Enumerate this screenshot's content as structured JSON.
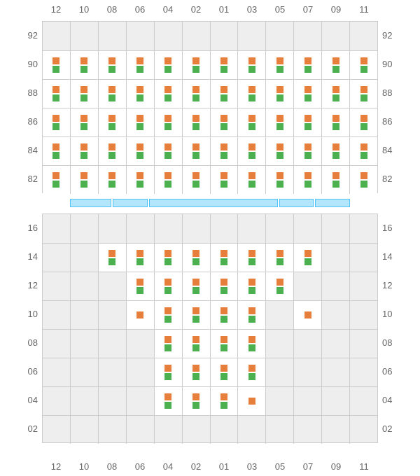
{
  "layout": {
    "columns": [
      "12",
      "10",
      "08",
      "06",
      "04",
      "02",
      "01",
      "03",
      "05",
      "07",
      "09",
      "11"
    ],
    "upper_rows": [
      "92",
      "90",
      "88",
      "86",
      "84",
      "82"
    ],
    "lower_rows": [
      "16",
      "14",
      "12",
      "10",
      "08",
      "06",
      "04",
      "02"
    ],
    "upper_row_height": 41,
    "lower_row_height": 41,
    "label_fontsize": 13,
    "label_color": "#666666",
    "grid_border_color": "#cccccc",
    "empty_bg": "#eeeeee",
    "active_bg": "#ffffff"
  },
  "markers": {
    "orange": "#e67e3c",
    "green": "#4caf50",
    "size": 10
  },
  "separator": {
    "segments": [
      1.2,
      1,
      3.8,
      1,
      1
    ],
    "fill": "#b3e5fc",
    "border": "#4fc3f7"
  },
  "upper_cells": [
    [
      {
        "active": false
      },
      {
        "active": false
      },
      {
        "active": false
      },
      {
        "active": false
      },
      {
        "active": false
      },
      {
        "active": false
      },
      {
        "active": false
      },
      {
        "active": false
      },
      {
        "active": false
      },
      {
        "active": false
      },
      {
        "active": false
      },
      {
        "active": false
      }
    ],
    [
      {
        "active": true,
        "o": 1,
        "g": 1
      },
      {
        "active": true,
        "o": 1,
        "g": 1
      },
      {
        "active": true,
        "o": 1,
        "g": 1
      },
      {
        "active": true,
        "o": 1,
        "g": 1
      },
      {
        "active": true,
        "o": 1,
        "g": 1
      },
      {
        "active": true,
        "o": 1,
        "g": 1
      },
      {
        "active": true,
        "o": 1,
        "g": 1
      },
      {
        "active": true,
        "o": 1,
        "g": 1
      },
      {
        "active": true,
        "o": 1,
        "g": 1
      },
      {
        "active": true,
        "o": 1,
        "g": 1
      },
      {
        "active": true,
        "o": 1,
        "g": 1
      },
      {
        "active": true,
        "o": 1,
        "g": 1
      }
    ],
    [
      {
        "active": true,
        "o": 1,
        "g": 1
      },
      {
        "active": true,
        "o": 1,
        "g": 1
      },
      {
        "active": true,
        "o": 1,
        "g": 1
      },
      {
        "active": true,
        "o": 1,
        "g": 1
      },
      {
        "active": true,
        "o": 1,
        "g": 1
      },
      {
        "active": true,
        "o": 1,
        "g": 1
      },
      {
        "active": true,
        "o": 1,
        "g": 1
      },
      {
        "active": true,
        "o": 1,
        "g": 1
      },
      {
        "active": true,
        "o": 1,
        "g": 1
      },
      {
        "active": true,
        "o": 1,
        "g": 1
      },
      {
        "active": true,
        "o": 1,
        "g": 1
      },
      {
        "active": true,
        "o": 1,
        "g": 1
      }
    ],
    [
      {
        "active": true,
        "o": 1,
        "g": 1
      },
      {
        "active": true,
        "o": 1,
        "g": 1
      },
      {
        "active": true,
        "o": 1,
        "g": 1
      },
      {
        "active": true,
        "o": 1,
        "g": 1
      },
      {
        "active": true,
        "o": 1,
        "g": 1
      },
      {
        "active": true,
        "o": 1,
        "g": 1
      },
      {
        "active": true,
        "o": 1,
        "g": 1
      },
      {
        "active": true,
        "o": 1,
        "g": 1
      },
      {
        "active": true,
        "o": 1,
        "g": 1
      },
      {
        "active": true,
        "o": 1,
        "g": 1
      },
      {
        "active": true,
        "o": 1,
        "g": 1
      },
      {
        "active": true,
        "o": 1,
        "g": 1
      }
    ],
    [
      {
        "active": true,
        "o": 1,
        "g": 1
      },
      {
        "active": true,
        "o": 1,
        "g": 1
      },
      {
        "active": true,
        "o": 1,
        "g": 1
      },
      {
        "active": true,
        "o": 1,
        "g": 1
      },
      {
        "active": true,
        "o": 1,
        "g": 1
      },
      {
        "active": true,
        "o": 1,
        "g": 1
      },
      {
        "active": true,
        "o": 1,
        "g": 1
      },
      {
        "active": true,
        "o": 1,
        "g": 1
      },
      {
        "active": true,
        "o": 1,
        "g": 1
      },
      {
        "active": true,
        "o": 1,
        "g": 1
      },
      {
        "active": true,
        "o": 1,
        "g": 1
      },
      {
        "active": true,
        "o": 1,
        "g": 1
      }
    ],
    [
      {
        "active": true,
        "o": 1,
        "g": 1
      },
      {
        "active": true,
        "o": 1,
        "g": 1
      },
      {
        "active": true,
        "o": 1,
        "g": 1
      },
      {
        "active": true,
        "o": 1,
        "g": 1
      },
      {
        "active": true,
        "o": 1,
        "g": 1
      },
      {
        "active": true,
        "o": 1,
        "g": 1
      },
      {
        "active": true,
        "o": 1,
        "g": 1
      },
      {
        "active": true,
        "o": 1,
        "g": 1
      },
      {
        "active": true,
        "o": 1,
        "g": 1
      },
      {
        "active": true,
        "o": 1,
        "g": 1
      },
      {
        "active": true,
        "o": 1,
        "g": 1
      },
      {
        "active": true,
        "o": 1,
        "g": 1
      }
    ]
  ],
  "lower_cells": [
    [
      {
        "active": false
      },
      {
        "active": false
      },
      {
        "active": false
      },
      {
        "active": false
      },
      {
        "active": false
      },
      {
        "active": false
      },
      {
        "active": false
      },
      {
        "active": false
      },
      {
        "active": false
      },
      {
        "active": false
      },
      {
        "active": false
      },
      {
        "active": false
      }
    ],
    [
      {
        "active": false
      },
      {
        "active": false
      },
      {
        "active": true,
        "o": 1,
        "g": 1
      },
      {
        "active": true,
        "o": 1,
        "g": 1
      },
      {
        "active": true,
        "o": 1,
        "g": 1
      },
      {
        "active": true,
        "o": 1,
        "g": 1
      },
      {
        "active": true,
        "o": 1,
        "g": 1
      },
      {
        "active": true,
        "o": 1,
        "g": 1
      },
      {
        "active": true,
        "o": 1,
        "g": 1
      },
      {
        "active": true,
        "o": 1,
        "g": 1
      },
      {
        "active": false
      },
      {
        "active": false
      }
    ],
    [
      {
        "active": false
      },
      {
        "active": false
      },
      {
        "active": false
      },
      {
        "active": true,
        "o": 1,
        "g": 1
      },
      {
        "active": true,
        "o": 1,
        "g": 1
      },
      {
        "active": true,
        "o": 1,
        "g": 1
      },
      {
        "active": true,
        "o": 1,
        "g": 1
      },
      {
        "active": true,
        "o": 1,
        "g": 1
      },
      {
        "active": true,
        "o": 1,
        "g": 1
      },
      {
        "active": false
      },
      {
        "active": false
      },
      {
        "active": false
      }
    ],
    [
      {
        "active": false
      },
      {
        "active": false
      },
      {
        "active": false
      },
      {
        "active": true,
        "o": 1,
        "g": 0
      },
      {
        "active": true,
        "o": 1,
        "g": 1
      },
      {
        "active": true,
        "o": 1,
        "g": 1
      },
      {
        "active": true,
        "o": 1,
        "g": 1
      },
      {
        "active": true,
        "o": 1,
        "g": 1
      },
      {
        "active": false
      },
      {
        "active": true,
        "o": 1,
        "g": 0
      },
      {
        "active": false
      },
      {
        "active": false
      }
    ],
    [
      {
        "active": false
      },
      {
        "active": false
      },
      {
        "active": false
      },
      {
        "active": false
      },
      {
        "active": true,
        "o": 1,
        "g": 1
      },
      {
        "active": true,
        "o": 1,
        "g": 1
      },
      {
        "active": true,
        "o": 1,
        "g": 1
      },
      {
        "active": true,
        "o": 1,
        "g": 1
      },
      {
        "active": false
      },
      {
        "active": false
      },
      {
        "active": false
      },
      {
        "active": false
      }
    ],
    [
      {
        "active": false
      },
      {
        "active": false
      },
      {
        "active": false
      },
      {
        "active": false
      },
      {
        "active": true,
        "o": 1,
        "g": 1
      },
      {
        "active": true,
        "o": 1,
        "g": 1
      },
      {
        "active": true,
        "o": 1,
        "g": 1
      },
      {
        "active": true,
        "o": 1,
        "g": 1
      },
      {
        "active": false
      },
      {
        "active": false
      },
      {
        "active": false
      },
      {
        "active": false
      }
    ],
    [
      {
        "active": false
      },
      {
        "active": false
      },
      {
        "active": false
      },
      {
        "active": false
      },
      {
        "active": true,
        "o": 1,
        "g": 1
      },
      {
        "active": true,
        "o": 1,
        "g": 1
      },
      {
        "active": true,
        "o": 1,
        "g": 1
      },
      {
        "active": true,
        "o": 1,
        "g": 0
      },
      {
        "active": false
      },
      {
        "active": false
      },
      {
        "active": false
      },
      {
        "active": false
      }
    ],
    [
      {
        "active": false
      },
      {
        "active": false
      },
      {
        "active": false
      },
      {
        "active": false
      },
      {
        "active": false
      },
      {
        "active": false
      },
      {
        "active": false
      },
      {
        "active": false
      },
      {
        "active": false
      },
      {
        "active": false
      },
      {
        "active": false
      },
      {
        "active": false
      }
    ]
  ]
}
